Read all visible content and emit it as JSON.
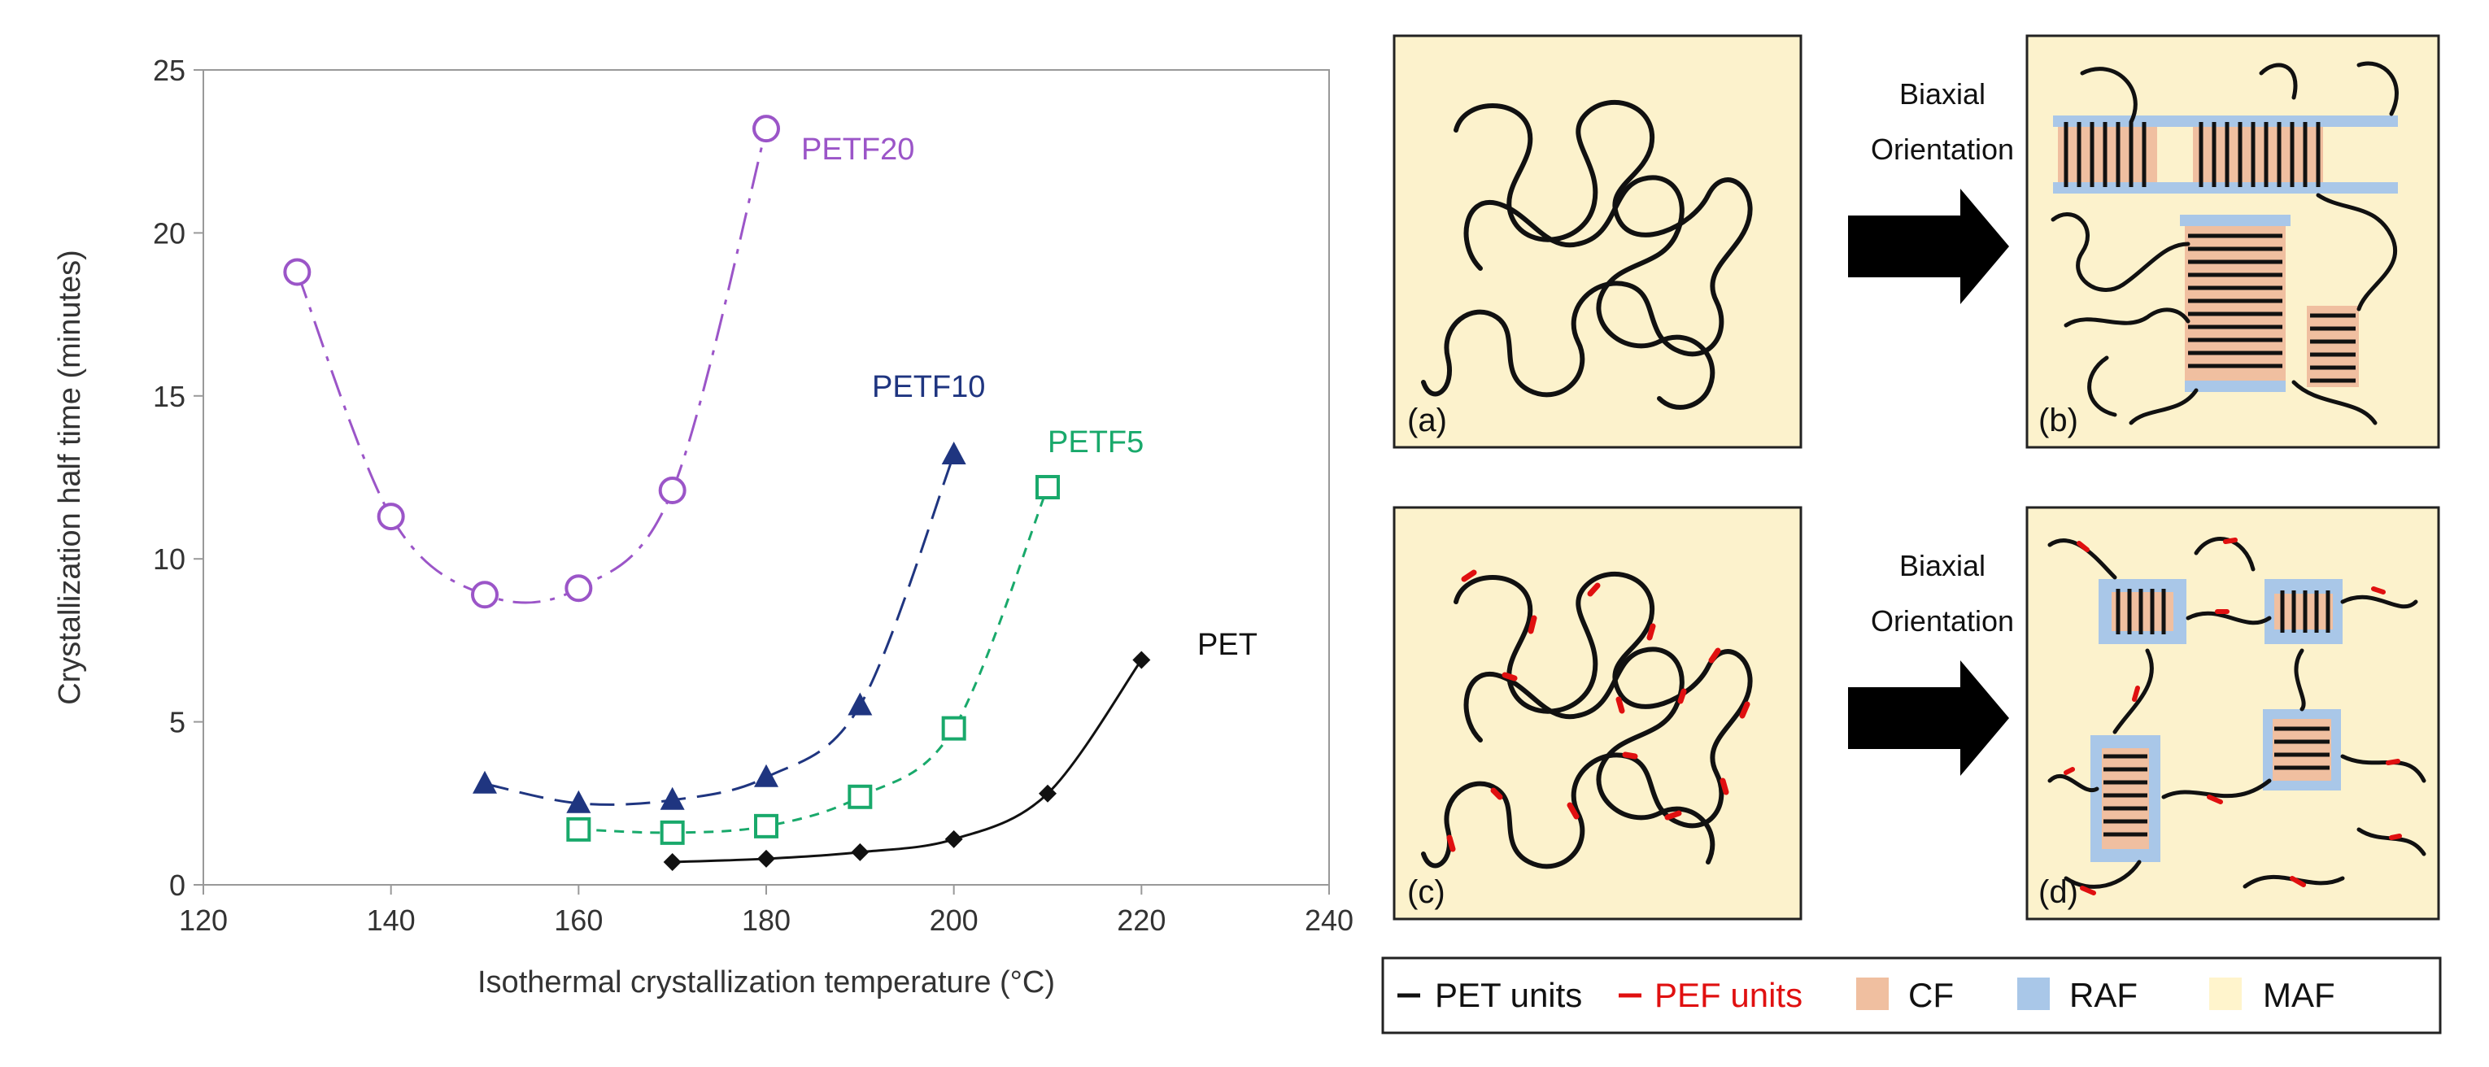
{
  "chart_data": {
    "type": "line",
    "xlabel": "Isothermal crystallization temperature (°C)",
    "ylabel": "Crystallization half time (minutes)",
    "xlim": [
      120,
      240
    ],
    "ylim": [
      0,
      25
    ],
    "xticks": [
      120,
      140,
      160,
      180,
      200,
      220,
      240
    ],
    "yticks": [
      0,
      5,
      10,
      15,
      20,
      25
    ],
    "series": [
      {
        "name": "PETF20",
        "color": "#9B55C8",
        "marker": "circle-open",
        "dash": "dashdot",
        "x": [
          130,
          140,
          150,
          160,
          170,
          180
        ],
        "y": [
          18.8,
          11.3,
          8.9,
          9.1,
          12.1,
          23.2
        ]
      },
      {
        "name": "PETF10",
        "color": "#1F3580",
        "marker": "triangle-filled",
        "dash": "longdash",
        "x": [
          150,
          160,
          170,
          180,
          190,
          200
        ],
        "y": [
          3.1,
          2.5,
          2.6,
          3.3,
          5.5,
          13.2
        ]
      },
      {
        "name": "PETF5",
        "color": "#19A96B",
        "marker": "square-open",
        "dash": "shortdash",
        "x": [
          160,
          170,
          180,
          190,
          200,
          210
        ],
        "y": [
          1.7,
          1.6,
          1.8,
          2.7,
          4.8,
          12.2
        ]
      },
      {
        "name": "PET",
        "color": "#111111",
        "marker": "diamond-filled",
        "dash": "solid",
        "x": [
          170,
          180,
          190,
          200,
          210,
          220
        ],
        "y": [
          0.7,
          0.8,
          1.0,
          1.4,
          2.8,
          6.9
        ]
      }
    ]
  },
  "schematic": {
    "panels": [
      "(a)",
      "(b)",
      "(c)",
      "(d)"
    ],
    "arrow_labels": [
      {
        "line1": "Biaxial",
        "line2": "Orientation"
      },
      {
        "line1": "Biaxial",
        "line2": "Orientation"
      }
    ],
    "legend": [
      {
        "label": "PET units",
        "color": "#111111",
        "kind": "line"
      },
      {
        "label": "PEF units",
        "color": "#E01010",
        "kind": "line"
      },
      {
        "label": "CF",
        "color": "#F0BFA0",
        "kind": "swatch"
      },
      {
        "label": "RAF",
        "color": "#A9C7E8",
        "kind": "swatch"
      },
      {
        "label": "MAF",
        "color": "#FFF4CC",
        "kind": "swatch"
      }
    ],
    "colors": {
      "panel_bg": "#FCF2CC",
      "arrow": "#000000"
    }
  }
}
